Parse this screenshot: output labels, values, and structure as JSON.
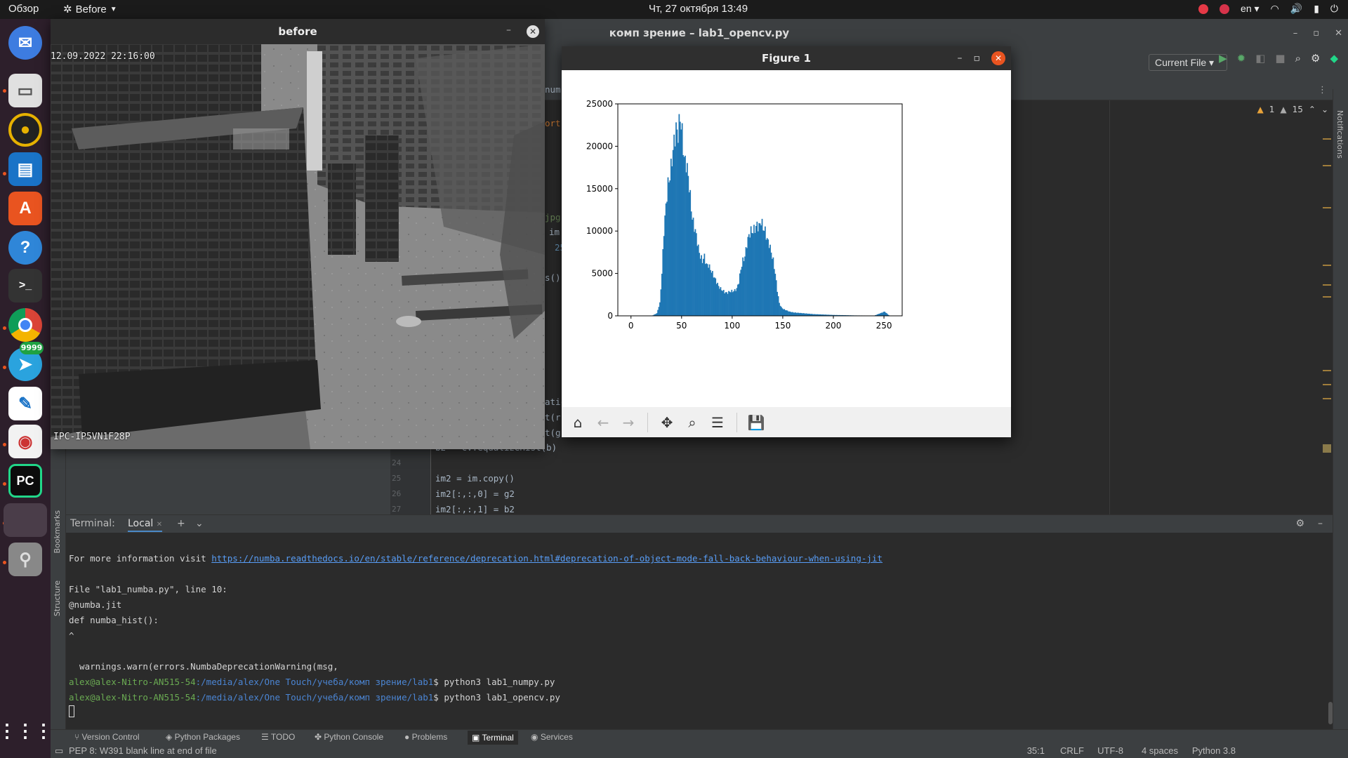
{
  "topbar": {
    "activities": "Обзор",
    "active_app": "Before",
    "clock": "Чт, 27 октября  13:49",
    "keyboard_layout": "en"
  },
  "dock": {
    "telegram_badge": "9999"
  },
  "pycharm": {
    "window_title": "комп зрение – lab1_opencv.py",
    "run_config": "Current File",
    "inspection": {
      "warnings": "1",
      "weak_warnings": "15"
    },
    "notifications_label": "Notifications",
    "bookmarks_label": "Bookmarks",
    "structure_label": "Structure",
    "code": [
      {
        "num": "24",
        "text": ""
      },
      {
        "num": "25",
        "text": "im2 = im.copy()"
      },
      {
        "num": "26",
        "text": "im2[:,:,0] = g2"
      },
      {
        "num": "27",
        "text": "im2[:,:,1] = b2"
      }
    ],
    "code_partial": [
      "b2 = cv.equalizeHist(b)",
      "num",
      "ort",
      "jpg",
      "im",
      "25",
      "s()",
      "atic",
      "t(r)",
      "t(g"
    ]
  },
  "terminal": {
    "label": "Terminal:",
    "tab": "Local",
    "lines": {
      "info_prefix": "For more information visit ",
      "info_link": "https://numba.readthedocs.io/en/stable/reference/deprecation.html#deprecation-of-object-mode-fall-back-behaviour-when-using-jit",
      "file_line": "File \"lab1_numba.py\", line 10:",
      "decorator": "@numba.jit",
      "def_line": "def numba_hist():",
      "caret": "^",
      "warn_line": "  warnings.warn(errors.NumbaDeprecationWarning(msg,",
      "prompt_user": "alex@alex-Nitro-AN515-54",
      "prompt_path": ":/media/alex/One Touch/учеба/комп зрение/lab1",
      "cmd1": "$ python3 lab1_numpy.py",
      "cmd2": "$ python3 lab1_opencv.py"
    }
  },
  "tooltabs": [
    "Version Control",
    "Python Packages",
    "TODO",
    "Python Console",
    "Problems",
    "Terminal",
    "Services"
  ],
  "status": {
    "message": "PEP 8: W391 blank line at end of file",
    "position": "35:1",
    "line_sep": "CRLF",
    "encoding": "UTF-8",
    "indent": "4 spaces",
    "interpreter": "Python 3.8"
  },
  "before_window": {
    "title": "before",
    "timestamp": "12.09.2022 22:16:00",
    "camera_id": "IPC-IP5VN1F28P"
  },
  "figure": {
    "title": "Figure 1"
  },
  "chart_data": {
    "type": "bar",
    "title": "",
    "xlabel": "",
    "ylabel": "",
    "xlim": [
      -13,
      268
    ],
    "ylim": [
      0,
      25000
    ],
    "xticks": [
      0,
      50,
      100,
      150,
      200,
      250
    ],
    "yticks": [
      0,
      5000,
      10000,
      15000,
      20000,
      25000
    ],
    "color": "#1f77b4",
    "x": [
      20,
      25,
      28,
      30,
      32,
      34,
      36,
      38,
      40,
      42,
      44,
      46,
      48,
      50,
      52,
      54,
      56,
      58,
      60,
      62,
      64,
      66,
      68,
      70,
      72,
      74,
      76,
      78,
      80,
      82,
      84,
      86,
      88,
      90,
      92,
      94,
      96,
      98,
      100,
      102,
      104,
      106,
      108,
      110,
      112,
      114,
      116,
      118,
      120,
      122,
      124,
      126,
      128,
      130,
      132,
      134,
      136,
      138,
      140,
      142,
      144,
      146,
      148,
      150,
      152,
      154,
      156,
      158,
      160,
      165,
      170,
      175,
      180,
      190,
      200,
      210,
      220,
      230,
      240,
      250,
      255
    ],
    "values": [
      0,
      300,
      1500,
      5000,
      10000,
      13000,
      15500,
      16500,
      18500,
      20500,
      22000,
      21500,
      23500,
      21500,
      18500,
      18000,
      16500,
      14000,
      11500,
      10500,
      9500,
      8000,
      7000,
      6500,
      7000,
      6000,
      6000,
      5500,
      5000,
      4500,
      4000,
      3500,
      3200,
      3000,
      2800,
      2700,
      2800,
      2900,
      2900,
      3000,
      3200,
      4000,
      5500,
      6500,
      7000,
      8500,
      9500,
      10000,
      10000,
      10300,
      10700,
      10500,
      11200,
      10400,
      10000,
      9000,
      8500,
      7500,
      6500,
      5000,
      3000,
      1500,
      1000,
      800,
      700,
      600,
      500,
      450,
      400,
      350,
      300,
      250,
      200,
      150,
      100,
      80,
      50,
      40,
      30,
      500,
      0
    ]
  }
}
